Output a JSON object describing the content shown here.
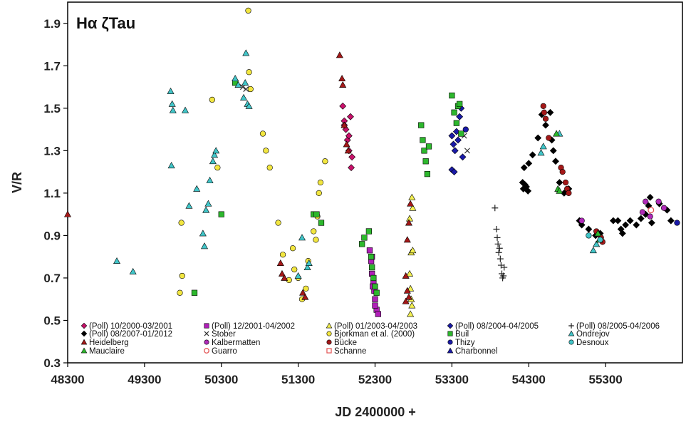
{
  "chart_data": {
    "type": "scatter",
    "title": "Hα ζTau",
    "xlabel": "JD 2400000 +",
    "ylabel": "V/R",
    "xlim": [
      48300,
      56300
    ],
    "ylim": [
      0.3,
      2.0
    ],
    "xticks": [
      48300,
      49300,
      50300,
      51300,
      52300,
      53300,
      54300,
      55300
    ],
    "yticks": [
      0.3,
      0.5,
      0.7,
      0.9,
      1.1,
      1.3,
      1.5,
      1.7,
      1.9
    ],
    "ytick_labels": [
      "0.3",
      "0.5",
      "0.7",
      "0.9",
      "1.1",
      "1.3",
      "1.5",
      "1.7",
      "1.9"
    ],
    "grid": false,
    "legend_position": "bottom",
    "series": [
      {
        "name": "(Poll) 10/2000-03/2001",
        "marker": "diamond",
        "color": "#c8106a",
        "points": [
          [
            51880,
            1.51
          ],
          [
            51900,
            1.44
          ],
          [
            51920,
            1.4
          ],
          [
            51940,
            1.35
          ],
          [
            51960,
            1.3
          ],
          [
            51980,
            1.46
          ],
          [
            52000,
            1.27
          ],
          [
            51900,
            1.42
          ],
          [
            51960,
            1.37
          ],
          [
            51990,
            1.22
          ]
        ]
      },
      {
        "name": "(Poll) 12/2001-04/2002",
        "marker": "square",
        "color": "#b01fb8",
        "points": [
          [
            52230,
            0.83
          ],
          [
            52250,
            0.78
          ],
          [
            52260,
            0.72
          ],
          [
            52280,
            0.68
          ],
          [
            52290,
            0.64
          ],
          [
            52300,
            0.6
          ],
          [
            52320,
            0.55
          ],
          [
            52340,
            0.53
          ],
          [
            52270,
            0.66
          ],
          [
            52300,
            0.57
          ],
          [
            52260,
            0.8
          ]
        ]
      },
      {
        "name": "(Poll) 01/2003-04/2003",
        "marker": "triangle",
        "color": "#f2ef50",
        "points": [
          [
            52750,
            0.98
          ],
          [
            52770,
            0.82
          ],
          [
            52790,
            0.83
          ],
          [
            52750,
            0.72
          ],
          [
            52760,
            0.65
          ],
          [
            52770,
            0.6
          ],
          [
            52780,
            0.57
          ],
          [
            52760,
            0.53
          ],
          [
            52790,
            1.03
          ],
          [
            52780,
            1.08
          ]
        ]
      },
      {
        "name": "(Poll) 08/2004-04/2005",
        "marker": "diamond",
        "color": "#1a1aa8",
        "points": [
          [
            53300,
            1.37
          ],
          [
            53320,
            1.33
          ],
          [
            53340,
            1.3
          ],
          [
            53360,
            1.39
          ],
          [
            53380,
            1.35
          ],
          [
            53400,
            1.46
          ],
          [
            53420,
            1.5
          ],
          [
            53440,
            1.27
          ],
          [
            53300,
            1.21
          ],
          [
            53330,
            1.2
          ]
        ]
      },
      {
        "name": "(Poll) 08/2005-04/2006",
        "marker": "plus",
        "color": "#222222",
        "points": [
          [
            53860,
            1.03
          ],
          [
            53880,
            0.93
          ],
          [
            53890,
            0.89
          ],
          [
            53900,
            0.86
          ],
          [
            53910,
            0.82
          ],
          [
            53920,
            0.84
          ],
          [
            53930,
            0.79
          ],
          [
            53940,
            0.76
          ],
          [
            53950,
            0.72
          ],
          [
            53960,
            0.7
          ],
          [
            53980,
            0.75
          ],
          [
            53970,
            0.71
          ]
        ]
      },
      {
        "name": "(Poll) 08/2007-01/2012",
        "marker": "diamond",
        "color": "#000000",
        "points": [
          [
            54220,
            1.15
          ],
          [
            54230,
            1.12
          ],
          [
            54250,
            1.14
          ],
          [
            54270,
            1.13
          ],
          [
            54290,
            1.11
          ],
          [
            54240,
            1.22
          ],
          [
            54300,
            1.24
          ],
          [
            54350,
            1.28
          ],
          [
            54420,
            1.36
          ],
          [
            54470,
            1.47
          ],
          [
            54520,
            1.42
          ],
          [
            54580,
            1.48
          ],
          [
            54600,
            1.35
          ],
          [
            54620,
            1.3
          ],
          [
            54650,
            1.25
          ],
          [
            54700,
            1.15
          ],
          [
            54760,
            1.1
          ],
          [
            54820,
            1.12
          ],
          [
            54960,
            0.97
          ],
          [
            54990,
            0.95
          ],
          [
            55080,
            0.93
          ],
          [
            55170,
            0.9
          ],
          [
            55230,
            0.91
          ],
          [
            55400,
            0.97
          ],
          [
            55460,
            0.97
          ],
          [
            55500,
            0.93
          ],
          [
            55520,
            0.91
          ],
          [
            55560,
            0.95
          ],
          [
            55620,
            0.97
          ],
          [
            55700,
            0.95
          ],
          [
            55760,
            0.98
          ],
          [
            55820,
            1.0
          ],
          [
            55860,
            1.04
          ],
          [
            55880,
            1.08
          ],
          [
            55900,
            0.96
          ],
          [
            56000,
            1.05
          ],
          [
            56100,
            1.02
          ],
          [
            56150,
            0.97
          ]
        ]
      },
      {
        "name": "Stober",
        "marker": "x",
        "color": "#333333",
        "points": [
          [
            50580,
            1.6
          ],
          [
            50620,
            1.59
          ],
          [
            53460,
            1.37
          ],
          [
            53500,
            1.3
          ]
        ]
      },
      {
        "name": "Bjorkman et al. (2000)",
        "marker": "circle",
        "color": "#f2e640",
        "points": [
          [
            49780,
            0.96
          ],
          [
            49790,
            0.71
          ],
          [
            49760,
            0.63
          ],
          [
            50180,
            1.54
          ],
          [
            50250,
            1.22
          ],
          [
            50650,
            1.96
          ],
          [
            50660,
            1.67
          ],
          [
            50680,
            1.59
          ],
          [
            50840,
            1.38
          ],
          [
            50880,
            1.3
          ],
          [
            50930,
            1.22
          ],
          [
            51040,
            0.96
          ],
          [
            51100,
            0.81
          ],
          [
            51180,
            0.69
          ],
          [
            51250,
            0.74
          ],
          [
            51300,
            0.7
          ],
          [
            51350,
            0.6
          ],
          [
            51400,
            0.65
          ],
          [
            51430,
            0.78
          ],
          [
            51500,
            0.92
          ],
          [
            51530,
            0.88
          ],
          [
            51550,
            0.99
          ],
          [
            51570,
            1.1
          ],
          [
            51590,
            1.15
          ],
          [
            51650,
            1.25
          ],
          [
            51230,
            0.84
          ]
        ]
      },
      {
        "name": "Buil",
        "marker": "square",
        "color": "#2db82d",
        "points": [
          [
            49950,
            0.63
          ],
          [
            50300,
            1.0
          ],
          [
            50480,
            1.62
          ],
          [
            52130,
            0.86
          ],
          [
            52160,
            0.89
          ],
          [
            52220,
            0.92
          ],
          [
            52250,
            0.8
          ],
          [
            52260,
            0.75
          ],
          [
            52280,
            0.7
          ],
          [
            52300,
            0.66
          ],
          [
            52320,
            0.63
          ],
          [
            52900,
            1.42
          ],
          [
            52920,
            1.35
          ],
          [
            52940,
            1.3
          ],
          [
            52960,
            1.25
          ],
          [
            52980,
            1.19
          ],
          [
            53000,
            1.32
          ],
          [
            53300,
            1.56
          ],
          [
            53330,
            1.48
          ],
          [
            53360,
            1.43
          ],
          [
            53380,
            1.51
          ],
          [
            53400,
            1.52
          ],
          [
            53420,
            1.38
          ],
          [
            51500,
            1.0
          ],
          [
            51600,
            0.96
          ],
          [
            51540,
            1.0
          ]
        ]
      },
      {
        "name": "Ondrejov",
        "marker": "triangle",
        "color": "#41c5c8",
        "points": [
          [
            48940,
            0.78
          ],
          [
            49150,
            0.73
          ],
          [
            49640,
            1.58
          ],
          [
            49660,
            1.52
          ],
          [
            49670,
            1.49
          ],
          [
            49650,
            1.23
          ],
          [
            49830,
            1.49
          ],
          [
            49880,
            1.04
          ],
          [
            49980,
            1.12
          ],
          [
            50060,
            0.91
          ],
          [
            50080,
            0.85
          ],
          [
            50150,
            1.16
          ],
          [
            50190,
            1.25
          ],
          [
            50210,
            1.28
          ],
          [
            50230,
            1.3
          ],
          [
            50480,
            1.64
          ],
          [
            50520,
            1.61
          ],
          [
            50590,
            1.55
          ],
          [
            50610,
            1.62
          ],
          [
            50620,
            1.76
          ],
          [
            50640,
            1.52
          ],
          [
            50660,
            1.51
          ],
          [
            51300,
            0.71
          ],
          [
            51350,
            0.89
          ],
          [
            51420,
            0.75
          ],
          [
            51440,
            0.77
          ],
          [
            54460,
            1.29
          ],
          [
            54490,
            1.32
          ],
          [
            54700,
            1.38
          ],
          [
            55140,
            0.83
          ],
          [
            55180,
            0.86
          ],
          [
            50100,
            1.02
          ],
          [
            50130,
            1.05
          ]
        ]
      },
      {
        "name": "Heidelberg",
        "marker": "triangle",
        "color": "#a41818",
        "points": [
          [
            48300,
            1.0
          ],
          [
            51070,
            0.77
          ],
          [
            51090,
            0.72
          ],
          [
            51120,
            0.7
          ],
          [
            51360,
            0.63
          ],
          [
            51390,
            0.61
          ],
          [
            51840,
            1.75
          ],
          [
            51870,
            1.64
          ],
          [
            51880,
            1.61
          ],
          [
            51900,
            1.42
          ],
          [
            51930,
            1.33
          ],
          [
            51950,
            1.3
          ],
          [
            52700,
            0.71
          ],
          [
            52720,
            0.88
          ],
          [
            52740,
            0.96
          ],
          [
            52760,
            1.05
          ],
          [
            52740,
            0.61
          ],
          [
            52720,
            0.64
          ],
          [
            52700,
            0.59
          ]
        ]
      },
      {
        "name": "Kalbermatten",
        "marker": "circle",
        "color": "#b02ab8",
        "points": [
          [
            54990,
            0.97
          ],
          [
            55780,
            1.01
          ],
          [
            55820,
            1.06
          ],
          [
            55880,
            0.99
          ],
          [
            55990,
            1.06
          ],
          [
            56060,
            1.03
          ]
        ]
      },
      {
        "name": "Bücke",
        "marker": "circle",
        "color": "#a41818",
        "points": [
          [
            54490,
            1.51
          ],
          [
            54500,
            1.48
          ],
          [
            54520,
            1.45
          ],
          [
            54560,
            1.36
          ],
          [
            54720,
            1.22
          ],
          [
            54740,
            1.2
          ],
          [
            54780,
            1.15
          ],
          [
            54800,
            1.12
          ],
          [
            54820,
            1.1
          ],
          [
            55180,
            0.92
          ],
          [
            55240,
            0.89
          ],
          [
            55260,
            0.87
          ]
        ]
      },
      {
        "name": "Thizy",
        "marker": "circle",
        "color": "#1a1aa8",
        "points": [
          [
            53480,
            1.4
          ],
          [
            56230,
            0.96
          ]
        ]
      },
      {
        "name": "Mauclaire",
        "marker": "triangle",
        "color": "#2db82d",
        "points": [
          [
            54660,
            1.38
          ],
          [
            54680,
            1.12
          ],
          [
            54700,
            1.11
          ],
          [
            55200,
            0.91
          ],
          [
            55220,
            0.88
          ]
        ]
      },
      {
        "name": "Guarro",
        "marker": "circle-open",
        "color": "#e35353",
        "points": [
          [
            55890,
            1.02
          ]
        ]
      },
      {
        "name": "Schanne",
        "marker": "square-open",
        "color": "#e35353",
        "points": []
      },
      {
        "name": "Charbonnel",
        "marker": "triangle",
        "color": "#1a1aa8",
        "points": []
      },
      {
        "name": "Desnoux",
        "marker": "circle",
        "color": "#41c5c8",
        "points": [
          [
            55080,
            0.9
          ],
          [
            55230,
            0.88
          ]
        ]
      }
    ]
  }
}
